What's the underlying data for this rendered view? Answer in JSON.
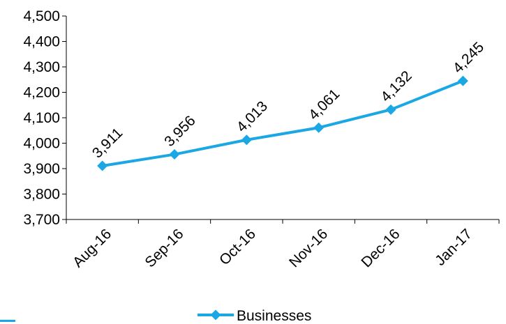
{
  "chart_data": {
    "type": "line",
    "categories": [
      "Aug-16",
      "Sep-16",
      "Oct-16",
      "Nov-16",
      "Dec-16",
      "Jan-17"
    ],
    "series": [
      {
        "name": "Businesses",
        "values": [
          3911,
          3956,
          4013,
          4061,
          4132,
          4245
        ],
        "data_labels": [
          "3,911",
          "3,956",
          "4,013",
          "4,061",
          "4,132",
          "4,245"
        ],
        "color": "#1aa7e4",
        "marker": "diamond"
      }
    ],
    "y_ticks": [
      3700,
      3800,
      3900,
      4000,
      4100,
      4200,
      4300,
      4400,
      4500
    ],
    "y_tick_labels": [
      "3,700",
      "3,800",
      "3,900",
      "4,000",
      "4,100",
      "4,200",
      "4,300",
      "4,400",
      "4,500"
    ],
    "ylim": [
      3700,
      4500
    ],
    "title": "",
    "xlabel": "",
    "ylabel": "",
    "grid": false,
    "legend_position": "bottom"
  }
}
